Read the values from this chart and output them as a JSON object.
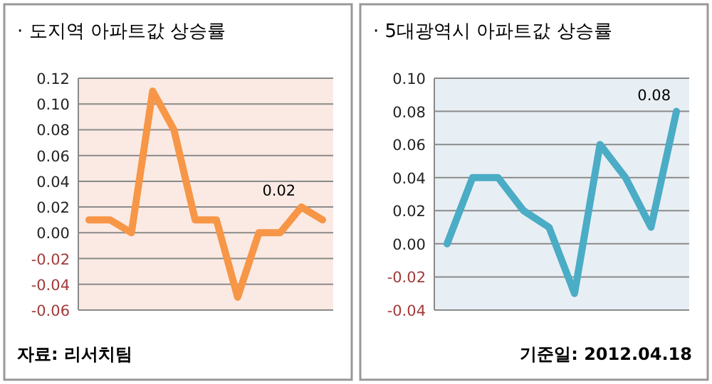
{
  "chart_data": [
    {
      "type": "line",
      "title": "· 도지역 아파트값 상승률",
      "categories": [
        null,
        null,
        null,
        null,
        null,
        null,
        null,
        null,
        null,
        null,
        null,
        null
      ],
      "series": [
        {
          "color": "#f79646",
          "values": [
            0.01,
            0.01,
            0,
            0.11,
            0.08,
            0.01,
            0.01,
            -0.05,
            0,
            0,
            0.02,
            0.01
          ],
          "value_labels": [
            null,
            null,
            null,
            null,
            null,
            null,
            null,
            null,
            null,
            null,
            "0.02",
            null
          ]
        }
      ],
      "ylim": [
        -0.06,
        0.12
      ],
      "yticks": [
        {
          "value": -0.06,
          "label": "-0.06"
        },
        {
          "value": -0.04,
          "label": "-0.04"
        },
        {
          "value": -0.02,
          "label": "-0.02"
        },
        {
          "value": 0,
          "label": "0.00"
        },
        {
          "value": 0.02,
          "label": "0.02"
        },
        {
          "value": 0.04,
          "label": "0.04"
        },
        {
          "value": 0.06,
          "label": "0.06"
        },
        {
          "value": 0.08,
          "label": "0.08"
        },
        {
          "value": 0.1,
          "label": "0.10"
        },
        {
          "value": 0.12,
          "label": "0.12"
        }
      ],
      "grid": "y",
      "marker": "none",
      "line_style": "solid",
      "annotations": [
        "자료: 리서치팀"
      ]
    },
    {
      "type": "line",
      "title": "· 5대광역시 아파트값 상승률",
      "categories": [
        null,
        null,
        null,
        null,
        null,
        null,
        null,
        null,
        null,
        null
      ],
      "series": [
        {
          "color": "#4bacc6",
          "values": [
            0,
            0.04,
            0.04,
            0.02,
            0.01,
            -0.03,
            0.06,
            0.04,
            0.01,
            0.08
          ],
          "value_labels": [
            null,
            null,
            null,
            null,
            null,
            null,
            null,
            null,
            null,
            "0.08"
          ]
        }
      ],
      "ylim": [
        -0.04,
        0.1
      ],
      "yticks": [
        {
          "value": -0.04,
          "label": "-0.04"
        },
        {
          "value": -0.02,
          "label": "-0.02"
        },
        {
          "value": 0,
          "label": "0.00"
        },
        {
          "value": 0.02,
          "label": "0.02"
        },
        {
          "value": 0.04,
          "label": "0.04"
        },
        {
          "value": 0.06,
          "label": "0.06"
        },
        {
          "value": 0.08,
          "label": "0.08"
        },
        {
          "value": 0.1,
          "label": "0.10"
        }
      ],
      "grid": "y",
      "marker": "none",
      "line_style": "solid",
      "annotations": [
        "기준일: 2012.04.18"
      ]
    }
  ]
}
